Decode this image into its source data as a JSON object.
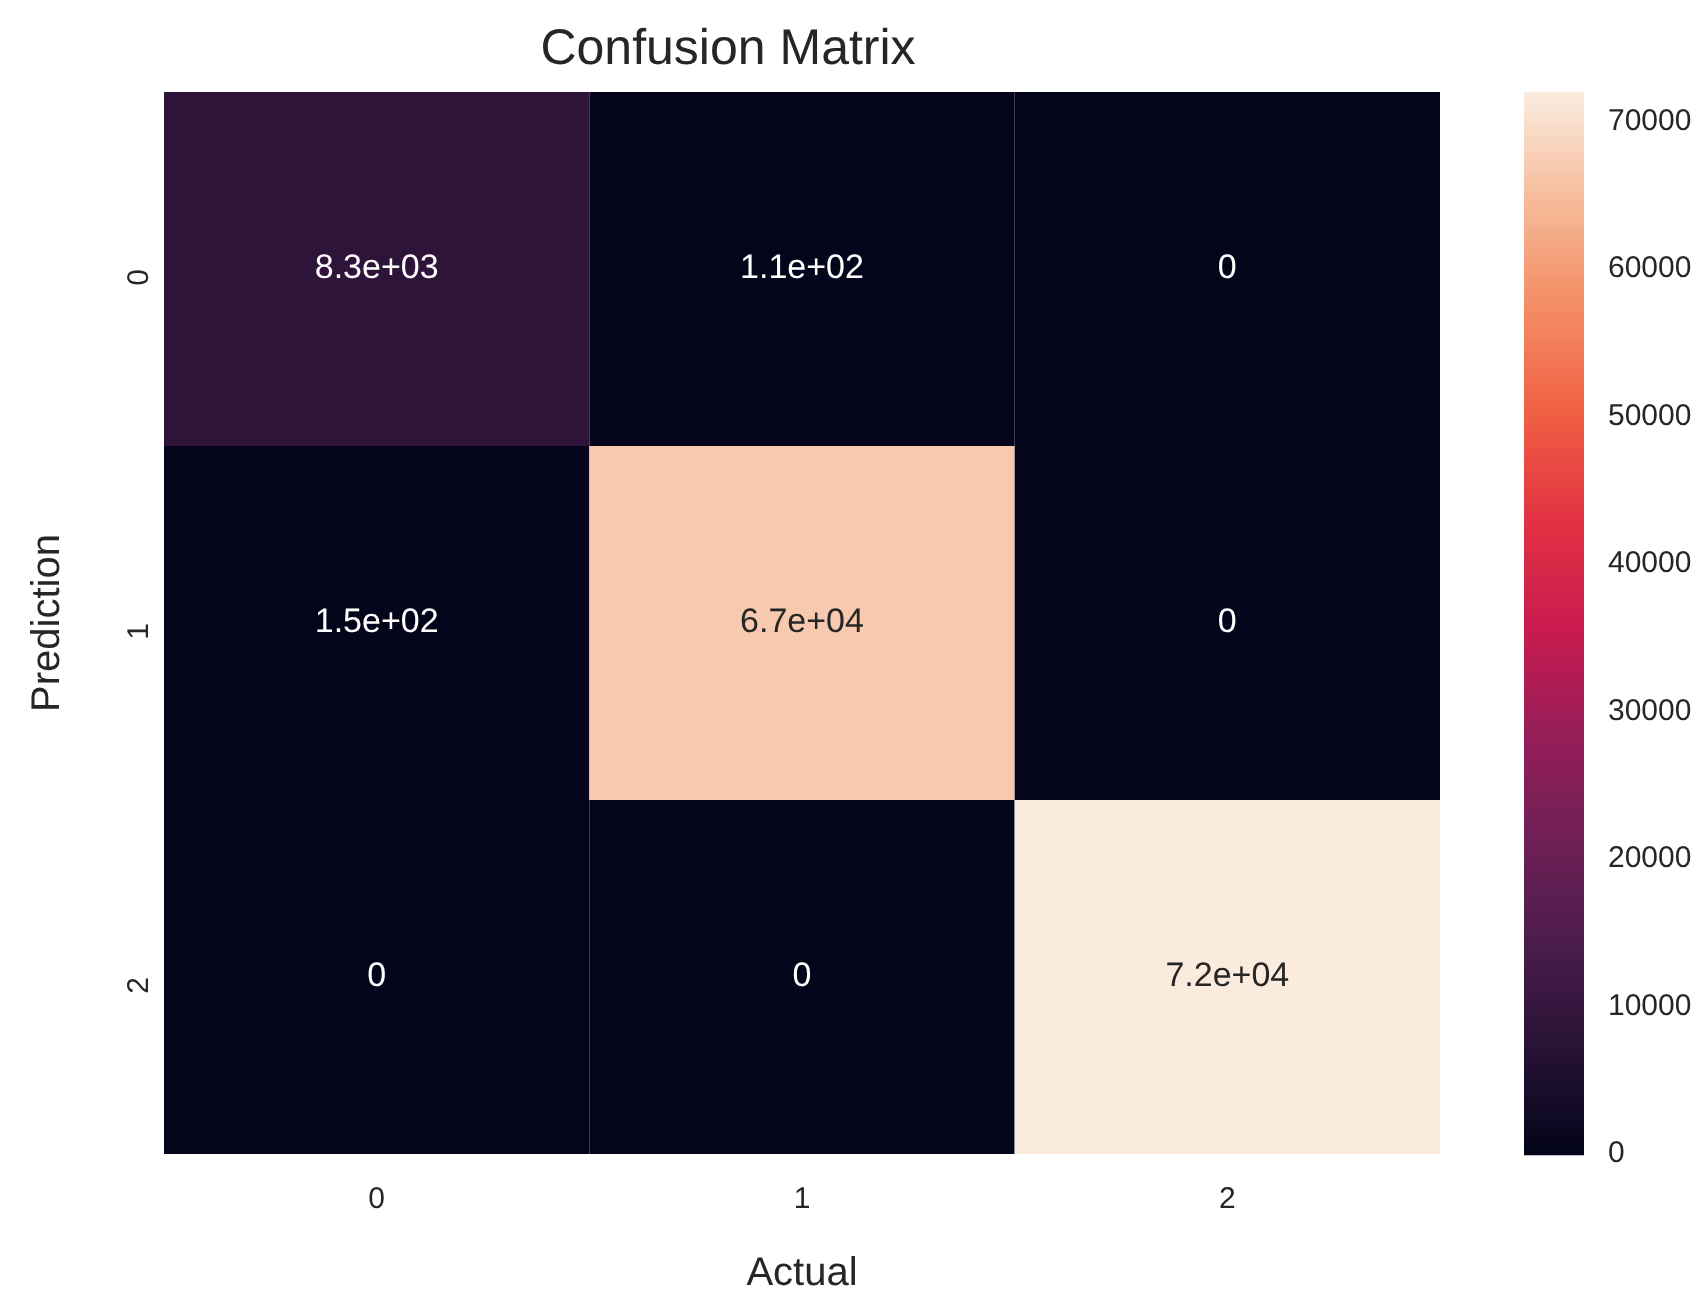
{
  "chart_data": {
    "type": "heatmap",
    "title": "Confusion Matrix",
    "xlabel": "Actual",
    "ylabel": "Prediction",
    "categories": [
      "0",
      "1",
      "2"
    ],
    "y_categories": [
      "0",
      "1",
      "2"
    ],
    "cells": [
      [
        8300,
        110,
        0
      ],
      [
        150,
        67000,
        0
      ],
      [
        0,
        0,
        72000
      ]
    ],
    "cell_labels": [
      [
        "8.3e+03",
        "1.1e+02",
        "0"
      ],
      [
        "1.5e+02",
        "6.7e+04",
        "0"
      ],
      [
        "0",
        "0",
        "7.2e+04"
      ]
    ],
    "clim": [
      0,
      72000
    ],
    "cticks": [
      0,
      10000,
      20000,
      30000,
      40000,
      50000,
      60000,
      70000
    ]
  }
}
